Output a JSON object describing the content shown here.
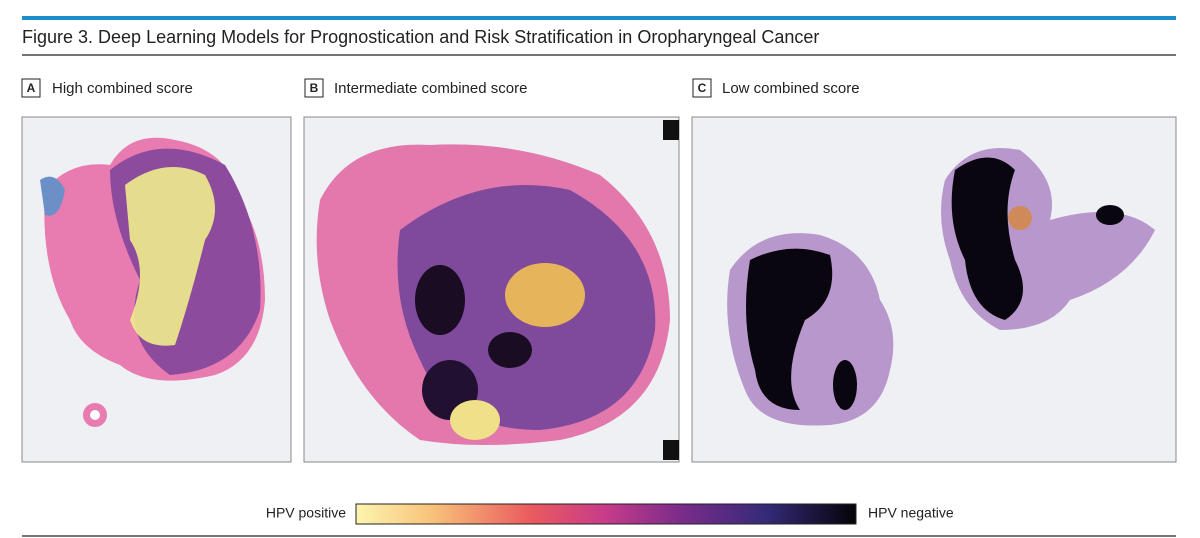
{
  "figure": {
    "title": "Figure 3. Deep Learning Models for Prognostication and Risk Stratification in Oropharyngeal Cancer",
    "panels": [
      {
        "letter": "A",
        "caption": "High combined score"
      },
      {
        "letter": "B",
        "caption": "Intermediate combined score"
      },
      {
        "letter": "C",
        "caption": "Low combined score"
      }
    ],
    "colorbar": {
      "low_label": "HPV positive",
      "high_label": "HPV negative"
    }
  }
}
